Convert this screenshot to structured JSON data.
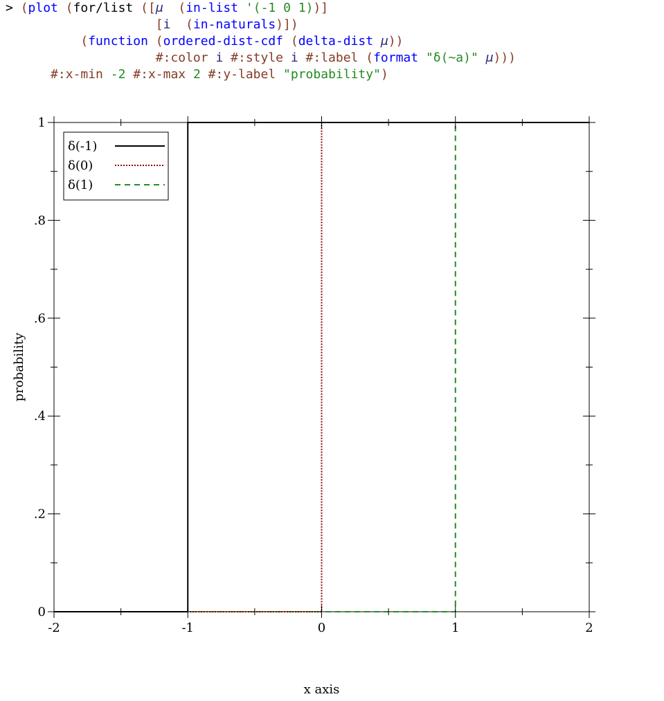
{
  "code_lines": [
    [
      {
        "t": "> ",
        "c": "tok-plain"
      },
      {
        "t": "(",
        "c": "tok-paren"
      },
      {
        "t": "plot",
        "c": "tok-fn"
      },
      {
        "t": " ",
        "c": "tok-plain"
      },
      {
        "t": "(",
        "c": "tok-paren"
      },
      {
        "t": "for/list",
        "c": "tok-plain"
      },
      {
        "t": " ",
        "c": "tok-plain"
      },
      {
        "t": "([",
        "c": "tok-paren"
      },
      {
        "t": "μ",
        "c": "tok-var"
      },
      {
        "t": "  ",
        "c": "tok-plain"
      },
      {
        "t": "(",
        "c": "tok-paren"
      },
      {
        "t": "in-list",
        "c": "tok-fn"
      },
      {
        "t": " ",
        "c": "tok-plain"
      },
      {
        "t": "'(-1 0 1)",
        "c": "tok-str"
      },
      {
        "t": ")]",
        "c": "tok-paren"
      }
    ],
    [
      {
        "t": "                    ",
        "c": "tok-plain"
      },
      {
        "t": "[",
        "c": "tok-paren"
      },
      {
        "t": "i",
        "c": "tok-kw"
      },
      {
        "t": "  ",
        "c": "tok-plain"
      },
      {
        "t": "(",
        "c": "tok-paren"
      },
      {
        "t": "in-naturals",
        "c": "tok-fn"
      },
      {
        "t": ")])",
        "c": "tok-paren"
      }
    ],
    [
      {
        "t": "          ",
        "c": "tok-plain"
      },
      {
        "t": "(",
        "c": "tok-paren"
      },
      {
        "t": "function",
        "c": "tok-fn"
      },
      {
        "t": " ",
        "c": "tok-plain"
      },
      {
        "t": "(",
        "c": "tok-paren"
      },
      {
        "t": "ordered-dist-cdf",
        "c": "tok-fn"
      },
      {
        "t": " ",
        "c": "tok-plain"
      },
      {
        "t": "(",
        "c": "tok-paren"
      },
      {
        "t": "delta-dist",
        "c": "tok-fn"
      },
      {
        "t": " ",
        "c": "tok-plain"
      },
      {
        "t": "μ",
        "c": "tok-var"
      },
      {
        "t": "))",
        "c": "tok-paren"
      }
    ],
    [
      {
        "t": "                    ",
        "c": "tok-plain"
      },
      {
        "t": "#:color",
        "c": "tok-paren"
      },
      {
        "t": " ",
        "c": "tok-plain"
      },
      {
        "t": "i",
        "c": "tok-kw"
      },
      {
        "t": " ",
        "c": "tok-plain"
      },
      {
        "t": "#:style",
        "c": "tok-paren"
      },
      {
        "t": " ",
        "c": "tok-plain"
      },
      {
        "t": "i",
        "c": "tok-kw"
      },
      {
        "t": " ",
        "c": "tok-plain"
      },
      {
        "t": "#:label",
        "c": "tok-paren"
      },
      {
        "t": " ",
        "c": "tok-plain"
      },
      {
        "t": "(",
        "c": "tok-paren"
      },
      {
        "t": "format",
        "c": "tok-fn"
      },
      {
        "t": " ",
        "c": "tok-plain"
      },
      {
        "t": "\"δ(~a)\"",
        "c": "tok-str"
      },
      {
        "t": " ",
        "c": "tok-plain"
      },
      {
        "t": "μ",
        "c": "tok-var"
      },
      {
        "t": ")))",
        "c": "tok-paren"
      }
    ],
    [
      {
        "t": "      ",
        "c": "tok-plain"
      },
      {
        "t": "#:x-min",
        "c": "tok-paren"
      },
      {
        "t": " ",
        "c": "tok-plain"
      },
      {
        "t": "-2",
        "c": "tok-str"
      },
      {
        "t": " ",
        "c": "tok-plain"
      },
      {
        "t": "#:x-max",
        "c": "tok-paren"
      },
      {
        "t": " ",
        "c": "tok-plain"
      },
      {
        "t": "2",
        "c": "tok-str"
      },
      {
        "t": " ",
        "c": "tok-plain"
      },
      {
        "t": "#:y-label",
        "c": "tok-paren"
      },
      {
        "t": " ",
        "c": "tok-plain"
      },
      {
        "t": "\"probability\"",
        "c": "tok-str"
      },
      {
        "t": ")",
        "c": "tok-paren"
      }
    ]
  ],
  "chart_data": {
    "type": "line",
    "title": "",
    "xlabel": "x axis",
    "ylabel": "probability",
    "xlim": [
      -2,
      2
    ],
    "ylim": [
      0,
      1
    ],
    "x_ticks": [
      {
        "value": -2,
        "label": "-2"
      },
      {
        "value": -1,
        "label": "-1"
      },
      {
        "value": 0,
        "label": "0"
      },
      {
        "value": 1,
        "label": "1"
      },
      {
        "value": 2,
        "label": "2"
      }
    ],
    "y_ticks": [
      {
        "value": 0,
        "label": "0"
      },
      {
        "value": 0.2,
        "label": ".2"
      },
      {
        "value": 0.4,
        "label": ".4"
      },
      {
        "value": 0.6,
        "label": ".6"
      },
      {
        "value": 0.8,
        "label": ".8"
      },
      {
        "value": 1,
        "label": "1"
      }
    ],
    "x_minor_ticks": [
      -1.5,
      -0.5,
      0.5,
      1.5
    ],
    "y_minor_ticks": [
      0.1,
      0.3,
      0.5,
      0.7,
      0.9
    ],
    "grid": false,
    "legend_position": "top-left",
    "series": [
      {
        "name": "δ(-1)",
        "color": "#000000",
        "style": "solid",
        "points": [
          [
            -2,
            0
          ],
          [
            -1,
            0
          ],
          [
            -1,
            1
          ],
          [
            2,
            1
          ]
        ]
      },
      {
        "name": "δ(0)",
        "color": "#8b0000",
        "style": "dotted",
        "points": [
          [
            -2,
            0
          ],
          [
            0,
            0
          ],
          [
            0,
            1
          ],
          [
            2,
            1
          ]
        ]
      },
      {
        "name": "δ(1)",
        "color": "#228b22",
        "style": "dashed",
        "points": [
          [
            -2,
            0
          ],
          [
            1,
            0
          ],
          [
            1,
            1
          ],
          [
            2,
            1
          ]
        ]
      }
    ]
  }
}
